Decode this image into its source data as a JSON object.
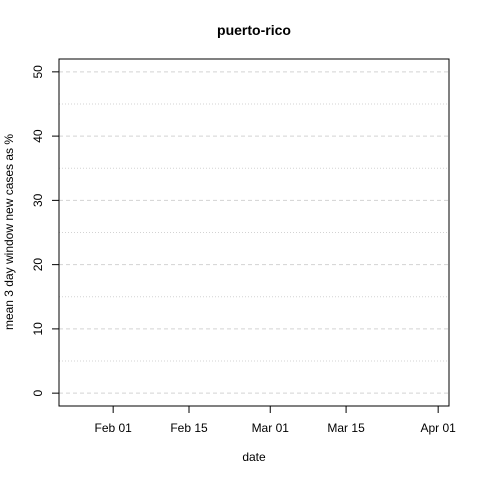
{
  "chart_data": {
    "type": "line",
    "title": "puerto-rico",
    "xlabel": "date",
    "ylabel": "mean  3  day window new cases as %",
    "x_ticks": [
      "Feb 01",
      "Feb 15",
      "Mar 01",
      "Mar 15",
      "Apr 01"
    ],
    "x_tick_dates": [
      "2020-02-01",
      "2020-02-15",
      "2020-03-01",
      "2020-03-15",
      "2020-04-01"
    ],
    "xlim": [
      "2020-01-22",
      "2020-04-03"
    ],
    "y_ticks": [
      "0",
      "10",
      "20",
      "30",
      "40",
      "50"
    ],
    "ylim": [
      -2,
      52
    ],
    "grid": {
      "major_y": [
        0,
        10,
        20,
        30,
        40,
        50
      ],
      "minor_y": [
        5,
        15,
        25,
        35,
        45
      ],
      "major_style": "dashed",
      "minor_style": "dotted",
      "color": "#d3d3d3"
    },
    "series": [
      {
        "x": [
          "2020-01-22",
          "2020-01-22"
        ],
        "values": [
          0,
          50
        ]
      }
    ],
    "line_color": "#000000"
  }
}
